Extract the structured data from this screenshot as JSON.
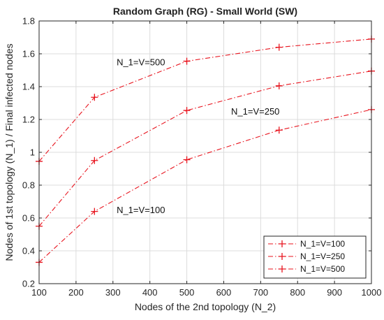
{
  "chart_data": {
    "type": "line",
    "title": "Random Graph (RG) - Small World (SW)",
    "xlabel": "Nodes of the 2nd topology (N_2)",
    "ylabel": "Nodes of 1st topology (N_1) / Final infected nodes",
    "xlim": [
      100,
      1000
    ],
    "ylim": [
      0.2,
      1.8
    ],
    "xticks": [
      100,
      200,
      300,
      400,
      500,
      600,
      700,
      800,
      900,
      1000
    ],
    "yticks": [
      0.2,
      0.4,
      0.6,
      0.8,
      1,
      1.2,
      1.4,
      1.6,
      1.8
    ],
    "grid": true,
    "legend_position": "bottom-right",
    "line_style": "dash-dot",
    "marker": "+",
    "color": "#e8141e",
    "x": [
      100,
      250,
      500,
      750,
      1000
    ],
    "series": [
      {
        "name": "N_1=V=100",
        "values": [
          0.33,
          0.64,
          0.955,
          1.135,
          1.26
        ]
      },
      {
        "name": "N_1=V=250",
        "values": [
          0.55,
          0.95,
          1.255,
          1.405,
          1.495
        ]
      },
      {
        "name": "N_1=V=500",
        "values": [
          0.945,
          1.335,
          1.555,
          1.64,
          1.69
        ]
      }
    ],
    "annotations": [
      {
        "text": "N_1=V=500",
        "x": 310,
        "y": 1.53
      },
      {
        "text": "N_1=V=250",
        "x": 620,
        "y": 1.23
      },
      {
        "text": "N_1=V=100",
        "x": 310,
        "y": 0.63
      }
    ]
  }
}
